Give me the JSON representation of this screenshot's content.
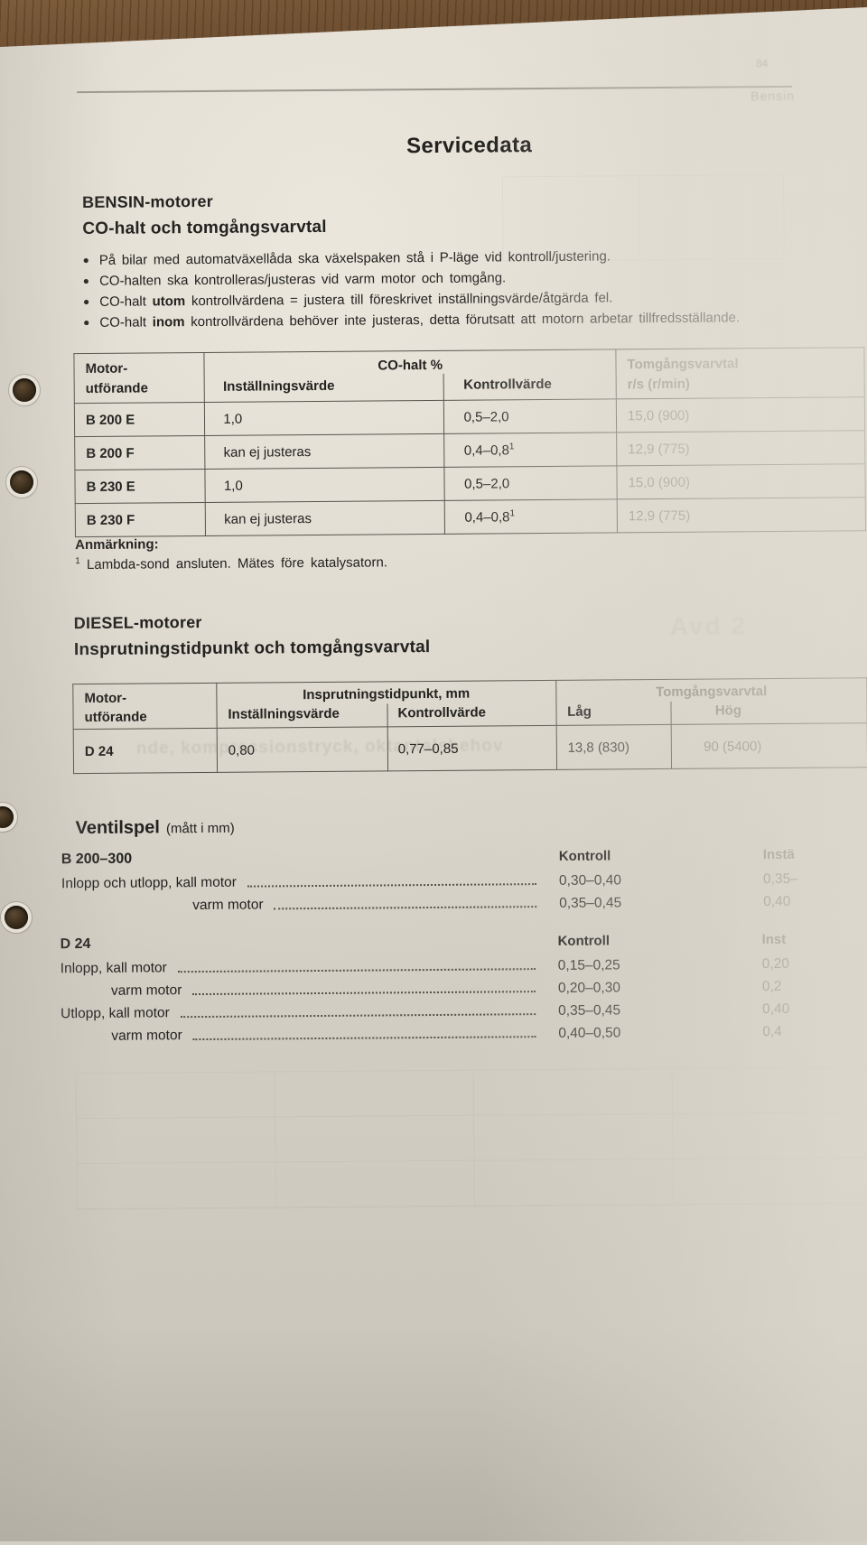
{
  "colors": {
    "paper": "#d5d1c7",
    "wood": "#6b4c2f",
    "ink": "#23221f",
    "faded_ink": "#8d897c",
    "table_border": "#55534d"
  },
  "page": {
    "title": "Servicedata"
  },
  "corner": {
    "top_fragment": "84",
    "side_fragment": "Bensin"
  },
  "bensin": {
    "heading": "BENSIN-motorer",
    "subheading": "CO-halt och tomgångsvarvtal",
    "bullets": [
      [
        {
          "t": "På bilar med automatväxellåda ska växelspaken stå i P-läge vid kontroll/justering."
        }
      ],
      [
        {
          "t": "CO-halten ska kontrolleras/justeras vid varm motor och tomgång."
        }
      ],
      [
        {
          "t": "CO-halt "
        },
        {
          "t": "utom",
          "b": true
        },
        {
          "t": " kontrollvärdena = justera till föreskrivet inställningsvärde/åtgärda fel."
        }
      ],
      [
        {
          "t": "CO-halt "
        },
        {
          "t": "inom",
          "b": true
        },
        {
          "t": " kontrollvärdena behöver inte justeras, detta förutsatt att motorn arbetar tillfredsställande."
        }
      ]
    ],
    "table": {
      "col1_line1": "Motor-",
      "col1_line2": "utförande",
      "group_header": "CO-halt %",
      "sub_install": "Inställningsvärde",
      "sub_kontroll": "Kontrollvärde",
      "right_line1": "Tomgångsvarvtal",
      "right_line2": "r/s (r/min)",
      "rows": [
        {
          "model": "B 200 E",
          "install": "1,0",
          "kontroll": "0,5–2,0",
          "sup": "",
          "idle": "15,0 (900)"
        },
        {
          "model": "B 200 F",
          "install": "kan ej justeras",
          "kontroll": "0,4–0,8",
          "sup": "1",
          "idle": "12,9 (775)"
        },
        {
          "model": "B 230 E",
          "install": "1,0",
          "kontroll": "0,5–2,0",
          "sup": "",
          "idle": "15,0 (900)"
        },
        {
          "model": "B 230 F",
          "install": "kan ej justeras",
          "kontroll": "0,4–0,8",
          "sup": "1",
          "idle": "12,9 (775)"
        }
      ]
    },
    "note_heading": "Anmärkning:",
    "note_sup": "1",
    "note_text": " Lambda-sond ansluten. Mätes före katalysatorn."
  },
  "diesel": {
    "heading": "DIESEL-motorer",
    "subheading": "Insprutningstidpunkt och tomgångsvarvtal",
    "table": {
      "col1_line1": "Motor-",
      "col1_line2": "utförande",
      "group1": "Insprutningstidpunkt, mm",
      "sub_install": "Inställningsvärde",
      "sub_kontroll": "Kontrollvärde",
      "group2": "Tomgångsvarvtal",
      "sub_lag": "Låg",
      "sub_hog": "Hög",
      "row": {
        "model": "D 24",
        "install": "0,80",
        "kontroll": "0,77–0,85",
        "lag": "13,8 (830)",
        "hog": "90 (5400)"
      }
    }
  },
  "ventilspel": {
    "heading": "Ventilspel",
    "suffix": "(mått i mm)",
    "groups": [
      {
        "title": "B 200–300",
        "kontroll_header": "Kontroll",
        "install_header": "Instä",
        "rows": [
          {
            "label": "Inlopp och utlopp, kall motor",
            "indent": false,
            "kontroll": "0,30–0,40",
            "install": "0,35–"
          },
          {
            "label": "varm motor",
            "indent": true,
            "kontroll": "0,35–0,45",
            "install": "0,40"
          }
        ]
      },
      {
        "title": "D 24",
        "kontroll_header": "Kontroll",
        "install_header": "Inst",
        "rows": [
          {
            "label": "Inlopp, kall motor",
            "indent": false,
            "kontroll": "0,15–0,25",
            "install": "0,20"
          },
          {
            "label": "varm motor",
            "indent": true,
            "kontroll": "0,20–0,30",
            "install": "0,2"
          },
          {
            "label": "Utlopp, kall motor",
            "indent": false,
            "kontroll": "0,35–0,45",
            "install": "0,40"
          },
          {
            "label": "varm motor",
            "indent": true,
            "kontroll": "0,40–0,50",
            "install": "0,4"
          }
        ]
      }
    ]
  },
  "ghosts": {
    "avd": "Avd 2",
    "bleed_line": "nde, kompressionstryck, oktantalsbehov"
  }
}
